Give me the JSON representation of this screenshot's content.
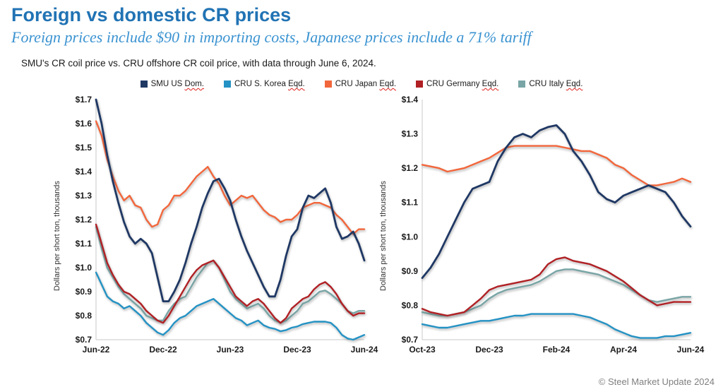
{
  "page": {
    "title": "Foreign vs domestic CR prices",
    "subtitle": "Foreign prices include $90 in importing costs, Japanese prices include a 71% tariff",
    "caption": "SMU's CR coil price vs. CRU offshore CR coil price, with data through June 6, 2024.",
    "footer": "© Steel Market Update 2024"
  },
  "colors": {
    "title_blue": "#2173B4",
    "subtitle_blue": "#3B93D1",
    "smu_us_dom": "#1F3864",
    "cru_s_korea": "#2492C4",
    "cru_japan": "#F2663B",
    "cru_germany": "#B02024",
    "cru_italy": "#79A5A6",
    "axis_gray": "#c8c8c8",
    "footer_gray": "#7f7f7f"
  },
  "legend": [
    {
      "label": "SMU US",
      "suffix": "Dom.",
      "flagged": true,
      "color": "#1F3864"
    },
    {
      "label": "CRU S. Korea",
      "suffix": "Eqd.",
      "flagged": true,
      "color": "#2492C4"
    },
    {
      "label": "CRU Japan",
      "suffix": "Eqd.",
      "flagged": true,
      "color": "#F2663B"
    },
    {
      "label": "CRU Germany",
      "suffix": "Eqd.",
      "flagged": true,
      "color": "#B02024"
    },
    {
      "label": "CRU Italy",
      "suffix": "Eqd.",
      "flagged": true,
      "color": "#79A5A6"
    }
  ],
  "chart_data": [
    {
      "type": "line",
      "title": "",
      "ylabel": "Dollars per short ton, thousands",
      "ylim": [
        0.7,
        1.7
      ],
      "ytick_step": 0.1,
      "ytick_prefix": "$",
      "grid": false,
      "xlim": [
        0,
        24
      ],
      "x_step": 0.5,
      "xticks": [
        {
          "x": 0,
          "label": "Jun-22"
        },
        {
          "x": 6,
          "label": "Dec-22"
        },
        {
          "x": 12,
          "label": "Jun-23"
        },
        {
          "x": 18,
          "label": "Dec-23"
        },
        {
          "x": 24,
          "label": "Jun-24"
        }
      ],
      "series": [
        {
          "name": "CRU S. Korea Eqd.",
          "color": "#2492C4",
          "width": 2.4,
          "values": [
            0.98,
            0.93,
            0.88,
            0.86,
            0.85,
            0.83,
            0.84,
            0.82,
            0.8,
            0.77,
            0.75,
            0.73,
            0.72,
            0.74,
            0.77,
            0.79,
            0.8,
            0.82,
            0.84,
            0.85,
            0.86,
            0.87,
            0.85,
            0.83,
            0.81,
            0.79,
            0.78,
            0.76,
            0.77,
            0.78,
            0.76,
            0.75,
            0.745,
            0.735,
            0.74,
            0.75,
            0.755,
            0.765,
            0.77,
            0.775,
            0.775,
            0.775,
            0.77,
            0.75,
            0.72,
            0.705,
            0.7,
            0.71,
            0.72
          ]
        },
        {
          "name": "CRU Italy Eqd.",
          "color": "#79A5A6",
          "width": 2.4,
          "values": [
            1.17,
            1.08,
            1.0,
            0.96,
            0.92,
            0.89,
            0.87,
            0.85,
            0.83,
            0.8,
            0.79,
            0.78,
            0.78,
            0.82,
            0.85,
            0.87,
            0.88,
            0.92,
            0.96,
            0.99,
            1.02,
            1.03,
            1.0,
            0.95,
            0.9,
            0.87,
            0.85,
            0.83,
            0.84,
            0.85,
            0.83,
            0.8,
            0.78,
            0.77,
            0.78,
            0.8,
            0.82,
            0.85,
            0.86,
            0.88,
            0.9,
            0.905,
            0.89,
            0.87,
            0.85,
            0.82,
            0.81,
            0.82,
            0.82
          ]
        },
        {
          "name": "CRU Germany Eqd.",
          "color": "#B02024",
          "width": 2.4,
          "values": [
            1.18,
            1.1,
            1.02,
            0.97,
            0.93,
            0.9,
            0.89,
            0.87,
            0.85,
            0.82,
            0.8,
            0.78,
            0.77,
            0.8,
            0.84,
            0.88,
            0.92,
            0.96,
            0.99,
            1.01,
            1.02,
            1.03,
            1.0,
            0.96,
            0.92,
            0.88,
            0.86,
            0.84,
            0.86,
            0.87,
            0.85,
            0.82,
            0.79,
            0.77,
            0.79,
            0.83,
            0.85,
            0.87,
            0.88,
            0.91,
            0.93,
            0.94,
            0.92,
            0.89,
            0.85,
            0.82,
            0.8,
            0.81,
            0.81
          ]
        },
        {
          "name": "CRU Japan Eqd.",
          "color": "#F2663B",
          "width": 2.4,
          "values": [
            1.61,
            1.55,
            1.45,
            1.38,
            1.32,
            1.28,
            1.3,
            1.26,
            1.25,
            1.2,
            1.17,
            1.18,
            1.24,
            1.26,
            1.3,
            1.3,
            1.32,
            1.35,
            1.38,
            1.4,
            1.42,
            1.38,
            1.35,
            1.3,
            1.26,
            1.28,
            1.3,
            1.29,
            1.3,
            1.27,
            1.24,
            1.22,
            1.21,
            1.19,
            1.2,
            1.2,
            1.22,
            1.25,
            1.26,
            1.27,
            1.27,
            1.26,
            1.25,
            1.22,
            1.2,
            1.17,
            1.14,
            1.16,
            1.16
          ]
        },
        {
          "name": "SMU US Dom.",
          "color": "#1F3864",
          "width": 2.8,
          "values": [
            1.7,
            1.6,
            1.47,
            1.36,
            1.27,
            1.19,
            1.13,
            1.1,
            1.12,
            1.1,
            1.06,
            0.96,
            0.86,
            0.86,
            0.9,
            0.95,
            1.02,
            1.1,
            1.17,
            1.25,
            1.31,
            1.36,
            1.37,
            1.33,
            1.28,
            1.2,
            1.13,
            1.07,
            1.02,
            0.97,
            0.92,
            0.88,
            0.88,
            0.95,
            1.05,
            1.13,
            1.16,
            1.25,
            1.3,
            1.29,
            1.31,
            1.33,
            1.27,
            1.17,
            1.12,
            1.13,
            1.15,
            1.1,
            1.03
          ]
        }
      ]
    },
    {
      "type": "line",
      "title": "",
      "ylabel": "Dollars per short ton, thousands",
      "ylim": [
        0.7,
        1.4
      ],
      "ytick_step": 0.1,
      "ytick_prefix": "$",
      "grid": false,
      "xlim": [
        0,
        8
      ],
      "x_step": 0.25,
      "xticks": [
        {
          "x": 0,
          "label": "Oct-23"
        },
        {
          "x": 2,
          "label": "Dec-23"
        },
        {
          "x": 4,
          "label": "Feb-24"
        },
        {
          "x": 6,
          "label": "Apr-24"
        },
        {
          "x": 8,
          "label": "Jun-24"
        }
      ],
      "series": [
        {
          "name": "CRU S. Korea Eqd.",
          "color": "#2492C4",
          "width": 2.4,
          "values": [
            0.745,
            0.74,
            0.735,
            0.735,
            0.74,
            0.745,
            0.75,
            0.755,
            0.755,
            0.76,
            0.765,
            0.77,
            0.77,
            0.775,
            0.775,
            0.775,
            0.775,
            0.775,
            0.775,
            0.77,
            0.765,
            0.755,
            0.745,
            0.73,
            0.72,
            0.71,
            0.705,
            0.705,
            0.705,
            0.71,
            0.71,
            0.715,
            0.72
          ]
        },
        {
          "name": "CRU Italy Eqd.",
          "color": "#79A5A6",
          "width": 2.4,
          "values": [
            0.78,
            0.775,
            0.77,
            0.77,
            0.775,
            0.78,
            0.79,
            0.8,
            0.82,
            0.835,
            0.845,
            0.85,
            0.855,
            0.86,
            0.87,
            0.885,
            0.9,
            0.905,
            0.905,
            0.9,
            0.895,
            0.89,
            0.88,
            0.87,
            0.86,
            0.845,
            0.83,
            0.815,
            0.81,
            0.815,
            0.82,
            0.825,
            0.825
          ]
        },
        {
          "name": "CRU Germany Eqd.",
          "color": "#B02024",
          "width": 2.4,
          "values": [
            0.79,
            0.78,
            0.775,
            0.77,
            0.775,
            0.78,
            0.8,
            0.82,
            0.845,
            0.855,
            0.86,
            0.865,
            0.87,
            0.875,
            0.89,
            0.92,
            0.935,
            0.94,
            0.93,
            0.925,
            0.92,
            0.91,
            0.9,
            0.885,
            0.87,
            0.85,
            0.83,
            0.815,
            0.8,
            0.805,
            0.81,
            0.81,
            0.81
          ]
        },
        {
          "name": "CRU Japan Eqd.",
          "color": "#F2663B",
          "width": 2.4,
          "values": [
            1.21,
            1.205,
            1.2,
            1.19,
            1.195,
            1.2,
            1.21,
            1.22,
            1.23,
            1.245,
            1.26,
            1.265,
            1.265,
            1.265,
            1.265,
            1.265,
            1.265,
            1.26,
            1.255,
            1.25,
            1.25,
            1.24,
            1.23,
            1.21,
            1.2,
            1.18,
            1.165,
            1.15,
            1.15,
            1.155,
            1.16,
            1.17,
            1.16
          ]
        },
        {
          "name": "SMU US Dom.",
          "color": "#1F3864",
          "width": 2.8,
          "values": [
            0.88,
            0.91,
            0.95,
            1.0,
            1.05,
            1.1,
            1.14,
            1.15,
            1.16,
            1.22,
            1.26,
            1.29,
            1.3,
            1.29,
            1.31,
            1.32,
            1.325,
            1.3,
            1.25,
            1.22,
            1.18,
            1.13,
            1.11,
            1.1,
            1.12,
            1.13,
            1.14,
            1.15,
            1.14,
            1.13,
            1.1,
            1.06,
            1.03
          ]
        }
      ]
    }
  ]
}
